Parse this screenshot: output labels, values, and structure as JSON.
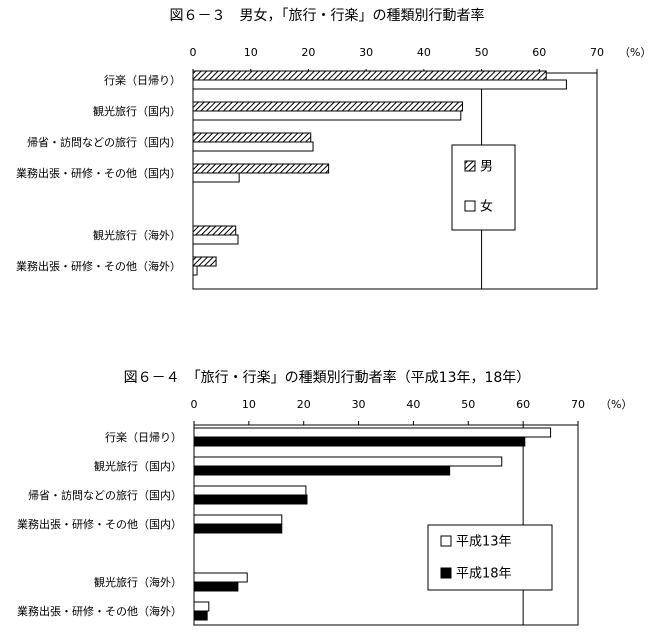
{
  "chart_data": [
    {
      "type": "hbar",
      "title": "図６－３　男女，「旅行・行楽」の種類別行動者率",
      "x_unit": "（%）",
      "categories": [
        "行楽（日帰り）",
        "観光旅行（国内）",
        "帰省・訪問などの旅行（国内）",
        "業務出張・研修・その他（国内）",
        null,
        "観光旅行（海外）",
        "業務出張・研修・その他（海外）"
      ],
      "series": [
        {
          "name": "男",
          "color": "#000000",
          "fill": "hatch",
          "values": [
            61.2,
            46.7,
            20.4,
            23.5,
            null,
            7.4,
            4.0
          ]
        },
        {
          "name": "女",
          "color": "#ffffff",
          "fill": "solid",
          "values": [
            64.7,
            46.4,
            20.8,
            8.0,
            null,
            7.8,
            0.7
          ]
        }
      ],
      "xlim": [
        0,
        70
      ],
      "xticks": [
        0,
        10,
        20,
        30,
        40,
        50,
        60,
        70
      ],
      "reference_line": 50,
      "legend": "right"
    },
    {
      "type": "hbar",
      "title": "図６－４　「旅行・行楽」の種類別行動者率（平成13年，18年）",
      "x_unit": "（%）",
      "categories": [
        "行楽（日帰り）",
        "観光旅行（国内）",
        "帰省・訪問などの旅行（国内）",
        "業務出張・研修・その他（国内）",
        null,
        "観光旅行（海外）",
        "業務出張・研修・その他（海外）"
      ],
      "series": [
        {
          "name": "平成13年",
          "color": "#ffffff",
          "fill": "solid",
          "values": [
            65.0,
            56.1,
            20.4,
            16.0,
            null,
            9.7,
            2.7
          ]
        },
        {
          "name": "平成18年",
          "color": "#000000",
          "fill": "solid",
          "values": [
            60.3,
            46.6,
            20.6,
            16.0,
            null,
            8.0,
            2.4
          ]
        }
      ],
      "xlim": [
        0,
        70
      ],
      "xticks": [
        0,
        10,
        20,
        30,
        40,
        50,
        60,
        70
      ],
      "reference_line": 60,
      "legend": "bottom-right"
    }
  ]
}
